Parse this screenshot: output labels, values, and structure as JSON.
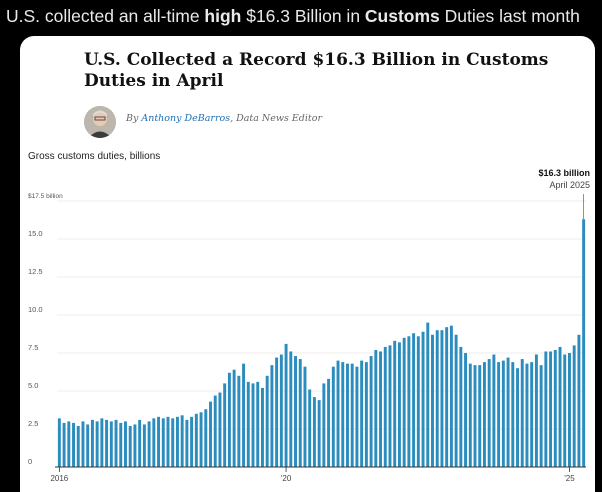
{
  "tweet": {
    "text_1": "U.S. collected an all-time ",
    "bold_1": "high",
    "text_2": " $16.3 Billion in ",
    "bold_2": "Customs",
    "text_3": " Duties last month"
  },
  "article": {
    "headline": "U.S. Collected a Record $16.3 Billion in Customs Duties in April",
    "byline_prefix": "By ",
    "author": "Anthony DeBarros",
    "byline_suffix": ", Data News Editor"
  },
  "chart_data": {
    "type": "bar",
    "subtitle": "Gross customs duties, billions",
    "y_ticks": [
      "0",
      "2.5",
      "5.0",
      "7.5",
      "10.0",
      "12.5",
      "15.0",
      "$17.5 billion"
    ],
    "y_tick_values": [
      0,
      2.5,
      5,
      7.5,
      10,
      12.5,
      15,
      17.5
    ],
    "ylim": [
      0,
      17.5
    ],
    "x_ticks": [
      {
        "label": "2016",
        "index": 0
      },
      {
        "label": "'20",
        "index": 48
      },
      {
        "label": "'25",
        "index": 108
      }
    ],
    "annotation": {
      "value_label": "$16.3 billion",
      "date_label": "April 2025",
      "index": 111
    },
    "start": "2016-01",
    "end": "2025-04",
    "values": [
      3.2,
      2.9,
      3.0,
      2.9,
      2.7,
      3.0,
      2.8,
      3.1,
      3.0,
      3.2,
      3.1,
      3.0,
      3.1,
      2.9,
      3.0,
      2.7,
      2.8,
      3.1,
      2.8,
      3.0,
      3.2,
      3.3,
      3.2,
      3.3,
      3.2,
      3.3,
      3.4,
      3.1,
      3.3,
      3.5,
      3.6,
      3.8,
      4.3,
      4.7,
      4.9,
      5.5,
      6.2,
      6.4,
      6.0,
      6.8,
      5.6,
      5.5,
      5.6,
      5.2,
      6.0,
      6.7,
      7.2,
      7.4,
      8.1,
      7.6,
      7.3,
      7.1,
      6.6,
      5.1,
      4.6,
      4.4,
      5.5,
      5.8,
      6.6,
      7.0,
      6.9,
      6.8,
      6.8,
      6.6,
      7.0,
      6.9,
      7.3,
      7.7,
      7.6,
      7.9,
      8.0,
      8.3,
      8.2,
      8.5,
      8.6,
      8.8,
      8.6,
      8.9,
      9.5,
      8.7,
      9.0,
      9.0,
      9.2,
      9.3,
      8.7,
      7.9,
      7.5,
      6.8,
      6.7,
      6.7,
      6.9,
      7.1,
      7.4,
      6.9,
      7.0,
      7.2,
      6.9,
      6.5,
      7.1,
      6.8,
      6.9,
      7.4,
      6.7,
      7.6,
      7.6,
      7.7,
      7.9,
      7.4,
      7.5,
      8.0,
      8.7,
      16.3
    ],
    "bar_color": "#2b8cbe",
    "grid": true
  }
}
